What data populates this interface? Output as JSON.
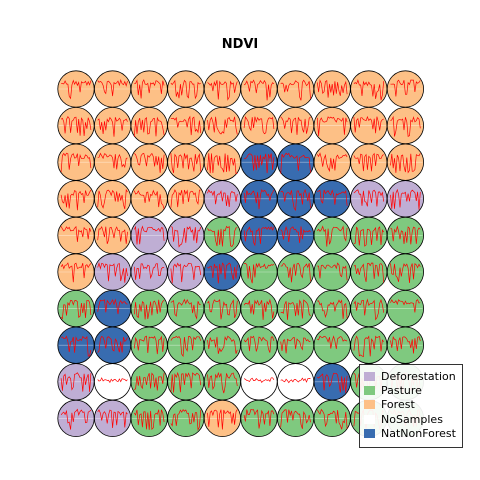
{
  "chart_data": {
    "type": "heatmap",
    "title": "NDVI",
    "legend_placement": "lower-right",
    "grid": false,
    "classes": [
      {
        "label": "Deforestation",
        "color": "#bfaed4"
      },
      {
        "label": "Pasture",
        "color": "#7fc97f"
      },
      {
        "label": "Forest",
        "color": "#fdc086"
      },
      {
        "label": "NoSamples",
        "color": "#ffffff"
      },
      {
        "label": "NatNonForest",
        "color": "#386cb0"
      }
    ],
    "line_color": "#ff0000",
    "cells": [
      [
        "Forest",
        "Forest",
        "Forest",
        "Forest",
        "Forest",
        "Forest",
        "Forest",
        "Forest",
        "Forest",
        "Forest"
      ],
      [
        "Forest",
        "Forest",
        "Forest",
        "Forest",
        "Forest",
        "Forest",
        "Forest",
        "Forest",
        "Forest",
        "Forest"
      ],
      [
        "Forest",
        "Forest",
        "Forest",
        "Forest",
        "Forest",
        "NatNonForest",
        "NatNonForest",
        "Forest",
        "Forest",
        "Forest"
      ],
      [
        "Forest",
        "Forest",
        "Forest",
        "Forest",
        "Deforestation",
        "NatNonForest",
        "NatNonForest",
        "NatNonForest",
        "Deforestation",
        "Deforestation"
      ],
      [
        "Forest",
        "Forest",
        "Deforestation",
        "Deforestation",
        "Pasture",
        "NatNonForest",
        "NatNonForest",
        "Pasture",
        "Pasture",
        "Pasture"
      ],
      [
        "Forest",
        "Deforestation",
        "Deforestation",
        "Deforestation",
        "NatNonForest",
        "Pasture",
        "Pasture",
        "Pasture",
        "Pasture",
        "Pasture"
      ],
      [
        "Pasture",
        "NatNonForest",
        "Pasture",
        "Pasture",
        "Pasture",
        "Pasture",
        "Pasture",
        "Pasture",
        "Pasture",
        "Pasture"
      ],
      [
        "NatNonForest",
        "NatNonForest",
        "Pasture",
        "Pasture",
        "Pasture",
        "Pasture",
        "Pasture",
        "Pasture",
        "Pasture",
        "Pasture"
      ],
      [
        "Deforestation",
        "NoSamples",
        "Pasture",
        "Pasture",
        "Pasture",
        "NoSamples",
        "NoSamples",
        "NatNonForest",
        "Pasture",
        "Pasture"
      ],
      [
        "Deforestation",
        "Deforestation",
        "Pasture",
        "Pasture",
        "Forest",
        "Pasture",
        "Pasture",
        "Pasture",
        "Pasture",
        "Pasture"
      ]
    ]
  }
}
